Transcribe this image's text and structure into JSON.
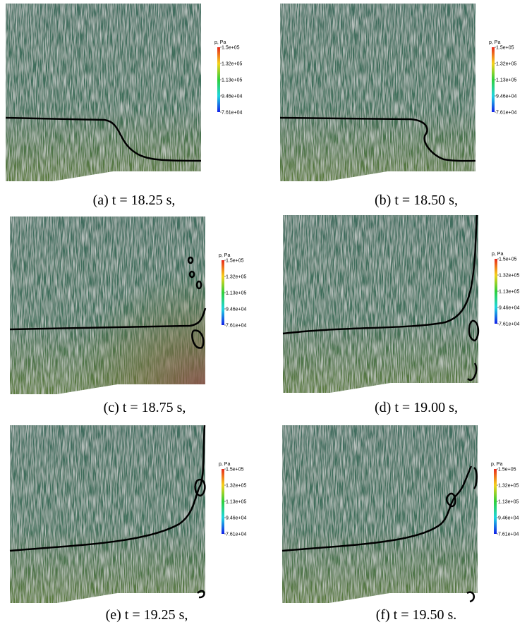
{
  "panels": [
    {
      "caption": "(a) t = 18.25 s,"
    },
    {
      "caption": "(b) t = 18.50 s,"
    },
    {
      "caption": "(c) t = 18.75 s,"
    },
    {
      "caption": "(d) t = 19.00 s,"
    },
    {
      "caption": "(e) t = 19.25 s,"
    },
    {
      "caption": "(f) t = 19.50 s."
    }
  ],
  "colorbar": {
    "title": "p, Pa",
    "ticks": [
      "1.5e+05",
      "1.32e+05",
      "1.13e+05",
      "9.46e+04",
      "7.61e+04"
    ]
  }
}
